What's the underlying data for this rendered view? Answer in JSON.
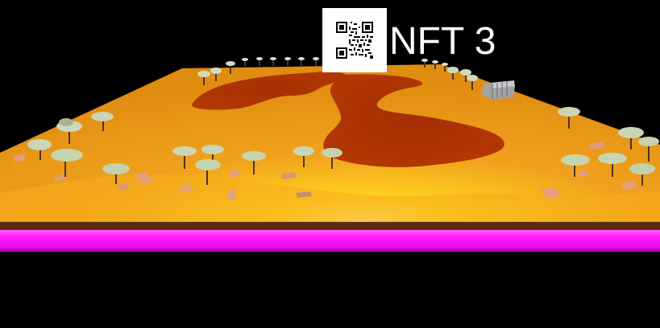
{
  "hud": {
    "nft_label": "NFT 3",
    "qr_icon": "qr-code-icon"
  },
  "colors": {
    "background": "#000000",
    "terrain_sand": "#f0a020",
    "terrain_highlight": "#ffd21f",
    "lava_pool": "#a52f04",
    "base_strip": "#ff19ff",
    "soil_edge": "#5a2a12",
    "rock": "#e49b78",
    "tree_canopy": "#c9d7b4",
    "tree_trunk": "#4b3420"
  },
  "scene": {
    "objects": [
      "terrain",
      "lava-pools",
      "trees",
      "rocks",
      "structure"
    ]
  }
}
